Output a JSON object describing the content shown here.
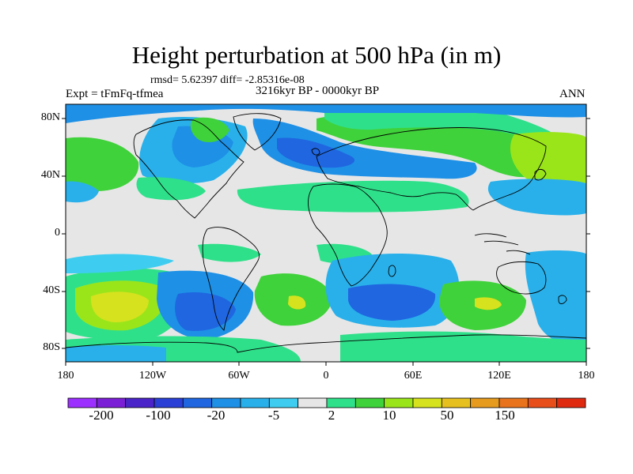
{
  "title": "Height perturbation at 500 hPa (in m)",
  "stats": "rmsd= 5.62397 diff= -2.85316e-08",
  "experiment": "Expt = tFmFq-tfmea",
  "period": "3216kyr BP - 0000kyr BP",
  "season": "ANN",
  "map": {
    "projection": "cylindrical equidistant",
    "lon_range": [
      -180,
      180
    ],
    "lat_range": [
      -90,
      90
    ],
    "y_ticks": [
      "80N",
      "40N",
      "0",
      "40S",
      "80S"
    ],
    "x_ticks": [
      "180",
      "120W",
      "60W",
      "0",
      "60E",
      "120E",
      "180"
    ]
  },
  "colorbar": {
    "colors": [
      "#9b30ff",
      "#7b1fd6",
      "#4a24c8",
      "#2a3fd6",
      "#1f66e0",
      "#1e90e6",
      "#29b0ea",
      "#3ecdf0",
      "#e6e6e6",
      "#2fe08a",
      "#3fd23a",
      "#9ae51a",
      "#d6e21e",
      "#e6c01e",
      "#e69a1e",
      "#e8731c",
      "#e84e1a",
      "#e02a10"
    ],
    "labels": [
      "-200",
      "-100",
      "-20",
      "-5",
      "2",
      "10",
      "50",
      "150"
    ]
  }
}
